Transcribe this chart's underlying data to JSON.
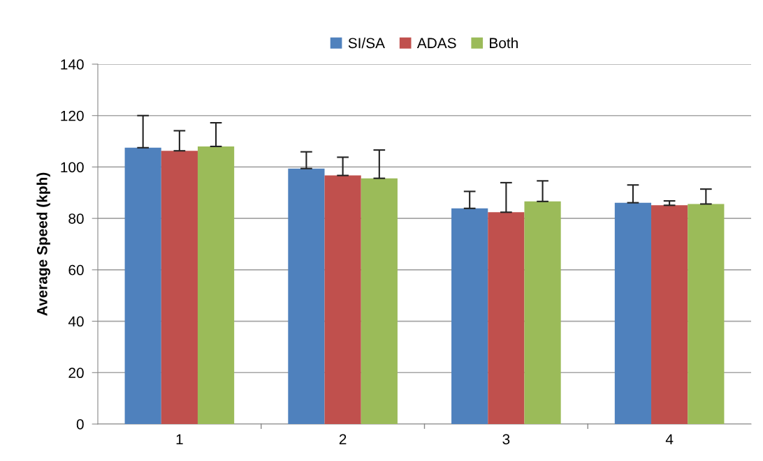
{
  "chart_data": {
    "type": "bar",
    "ylabel": "Average Speed (kph)",
    "categories": [
      "1",
      "2",
      "3",
      "4"
    ],
    "series": [
      {
        "name": "SI/SA",
        "color": "#4f81bd",
        "values": [
          107.5,
          99.4,
          83.9,
          86.1
        ],
        "errors": [
          [
            107.5,
            120
          ],
          [
            99.4,
            105.9
          ],
          [
            83.9,
            90.5
          ],
          [
            86.1,
            93
          ]
        ]
      },
      {
        "name": "ADAS",
        "color": "#c0504d",
        "values": [
          106.3,
          96.7,
          82.4,
          85.1
        ],
        "errors": [
          [
            106.3,
            114.1
          ],
          [
            96.7,
            103.8
          ],
          [
            82.4,
            93.9
          ],
          [
            85.1,
            86.8
          ]
        ]
      },
      {
        "name": "Both",
        "color": "#9bbb59",
        "values": [
          108,
          95.6,
          86.6,
          85.6
        ],
        "errors": [
          [
            108,
            117.2
          ],
          [
            95.6,
            106.6
          ],
          [
            86.6,
            94.6
          ],
          [
            85.6,
            91.4
          ]
        ]
      }
    ],
    "ylim": [
      0,
      140
    ],
    "yticks": [
      0,
      20,
      40,
      60,
      80,
      100,
      120,
      140
    ],
    "grid": "y",
    "legend": "top"
  }
}
